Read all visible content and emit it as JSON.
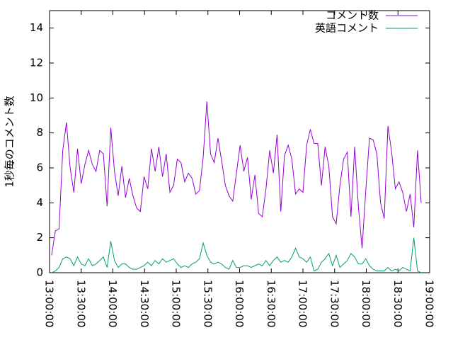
{
  "chart_data": {
    "type": "line",
    "ylabel": "1秒毎のコメント数",
    "x": [
      "13:02:00",
      "13:05:30",
      "13:09:00",
      "13:12:30",
      "13:16:00",
      "13:19:30",
      "13:23:00",
      "13:26:30",
      "13:30:00",
      "13:33:30",
      "13:37:00",
      "13:40:30",
      "13:44:00",
      "13:47:30",
      "13:51:00",
      "13:54:30",
      "13:58:00",
      "14:01:30",
      "14:05:00",
      "14:08:30",
      "14:12:00",
      "14:15:30",
      "14:19:00",
      "14:22:30",
      "14:26:00",
      "14:29:30",
      "14:33:00",
      "14:36:30",
      "14:40:00",
      "14:43:30",
      "14:47:00",
      "14:50:30",
      "14:54:00",
      "14:57:30",
      "15:01:00",
      "15:04:30",
      "15:08:00",
      "15:11:30",
      "15:15:00",
      "15:18:30",
      "15:22:00",
      "15:25:30",
      "15:29:00",
      "15:32:30",
      "15:36:00",
      "15:39:30",
      "15:43:00",
      "15:46:30",
      "15:50:00",
      "15:53:30",
      "15:57:00",
      "16:00:30",
      "16:04:00",
      "16:07:30",
      "16:11:00",
      "16:14:30",
      "16:18:00",
      "16:21:30",
      "16:25:00",
      "16:28:30",
      "16:32:00",
      "16:35:30",
      "16:39:00",
      "16:42:30",
      "16:46:00",
      "16:49:30",
      "16:53:00",
      "16:56:30",
      "17:00:00",
      "17:03:30",
      "17:07:00",
      "17:10:30",
      "17:14:00",
      "17:17:30",
      "17:21:00",
      "17:24:30",
      "17:28:00",
      "17:31:30",
      "17:35:00",
      "17:38:30",
      "17:42:00",
      "17:45:30",
      "17:49:00",
      "17:52:30",
      "17:56:00",
      "17:59:30",
      "18:03:00",
      "18:06:30",
      "18:10:00",
      "18:13:30",
      "18:17:00",
      "18:20:30",
      "18:24:00",
      "18:27:30",
      "18:31:00",
      "18:34:30",
      "18:38:00",
      "18:41:30",
      "18:45:00",
      "18:48:30",
      "18:52:00"
    ],
    "series": [
      {
        "name": "コメント数",
        "color": "#9400d3",
        "values": [
          1.0,
          2.4,
          2.5,
          7.0,
          8.6,
          6.0,
          4.6,
          7.1,
          5.1,
          6.2,
          7.0,
          6.2,
          5.8,
          7.0,
          6.8,
          3.8,
          8.3,
          5.8,
          4.4,
          6.1,
          4.3,
          5.4,
          4.4,
          3.7,
          3.5,
          5.5,
          4.8,
          7.1,
          5.8,
          7.2,
          5.5,
          6.8,
          4.6,
          5.0,
          6.5,
          6.3,
          5.2,
          5.7,
          5.4,
          4.5,
          4.7,
          6.6,
          9.8,
          6.8,
          6.3,
          7.7,
          6.4,
          5.0,
          4.4,
          4.1,
          5.7,
          7.3,
          5.8,
          6.6,
          4.2,
          5.6,
          3.4,
          3.2,
          4.8,
          7.0,
          5.7,
          7.9,
          3.5,
          6.7,
          7.3,
          6.5,
          4.5,
          4.8,
          4.6,
          7.3,
          8.2,
          7.4,
          7.4,
          5.0,
          7.2,
          6.1,
          3.2,
          2.8,
          5.0,
          6.5,
          6.9,
          3.2,
          7.2,
          3.8,
          1.4,
          4.7,
          7.7,
          7.6,
          6.8,
          4.0,
          3.1,
          8.4,
          6.9,
          4.8,
          5.2,
          4.6,
          3.5,
          4.5,
          2.6,
          7.0,
          4.0
        ]
      },
      {
        "name": "英語コメント",
        "color": "#009e73",
        "values": [
          0.0,
          0.1,
          0.3,
          0.8,
          0.9,
          0.8,
          0.4,
          0.9,
          0.5,
          0.4,
          0.8,
          0.4,
          0.5,
          0.7,
          0.9,
          0.3,
          1.8,
          0.7,
          0.3,
          0.5,
          0.5,
          0.3,
          0.2,
          0.2,
          0.3,
          0.4,
          0.6,
          0.4,
          0.7,
          0.5,
          0.8,
          0.6,
          0.7,
          0.8,
          0.5,
          0.3,
          0.4,
          0.3,
          0.5,
          0.6,
          0.8,
          1.7,
          1.0,
          0.6,
          0.5,
          0.6,
          0.5,
          0.3,
          0.2,
          0.7,
          0.3,
          0.3,
          0.4,
          0.4,
          0.3,
          0.4,
          0.5,
          0.4,
          0.7,
          0.4,
          0.7,
          0.9,
          0.6,
          0.7,
          0.6,
          0.9,
          1.4,
          0.9,
          0.8,
          0.6,
          0.9,
          0.1,
          0.2,
          0.6,
          0.8,
          1.1,
          0.4,
          1.0,
          0.3,
          0.5,
          0.7,
          1.1,
          0.9,
          0.5,
          0.5,
          0.8,
          0.4,
          0.2,
          0.1,
          0.1,
          0.1,
          0.3,
          0.1,
          0.2,
          0.1,
          0.3,
          0.2,
          0.1,
          2.0,
          0.1,
          0.0
        ]
      }
    ],
    "xlim": [
      "13:00:00",
      "19:00:00"
    ],
    "xticks": [
      "13:00:00",
      "13:30:00",
      "14:00:00",
      "14:30:00",
      "15:00:00",
      "15:30:00",
      "16:00:00",
      "16:30:00",
      "17:00:00",
      "17:30:00",
      "18:00:00",
      "18:30:00",
      "19:00:00"
    ],
    "ylim": [
      0,
      15
    ],
    "yticks": [
      0,
      2,
      4,
      6,
      8,
      10,
      12,
      14
    ],
    "grid": false,
    "legend": "top-right"
  }
}
